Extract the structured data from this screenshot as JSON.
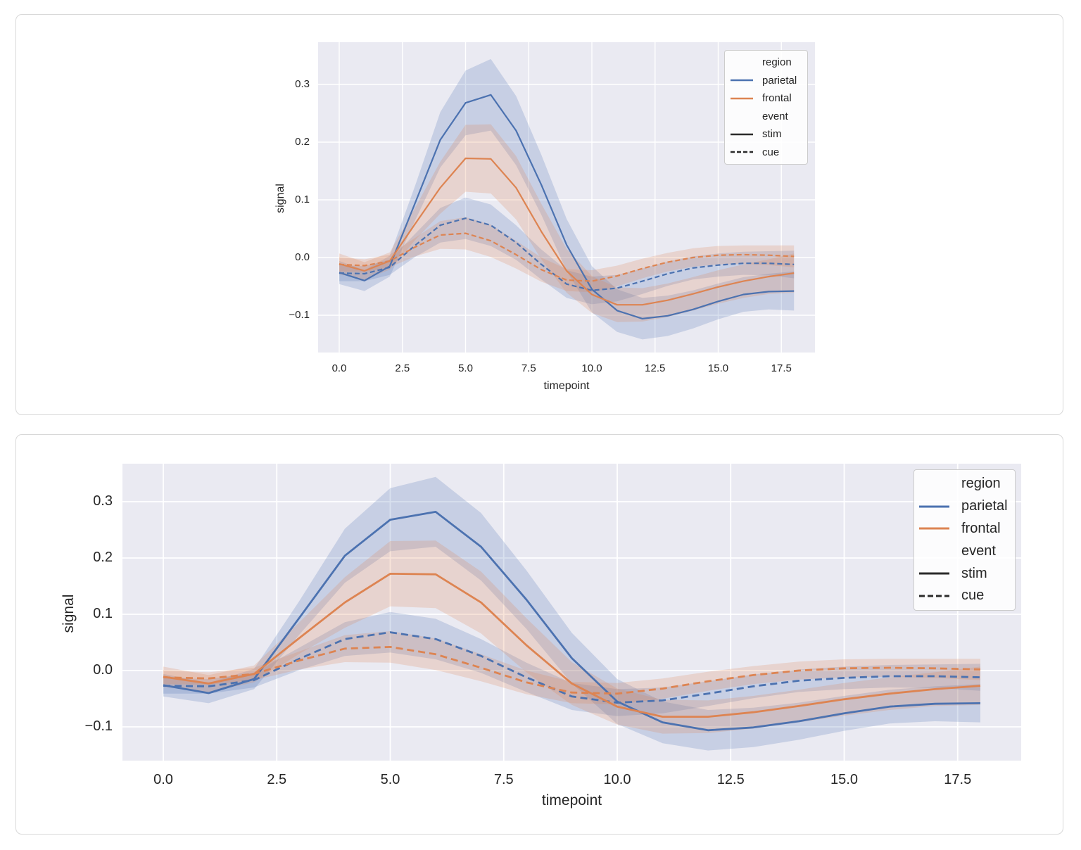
{
  "page": {
    "background": "#ffffff"
  },
  "colors": {
    "parietal": "#4c72b0",
    "frontal": "#dd8452",
    "legend_line": "#2b2b2b",
    "plot_bg": "#eaeaf2",
    "grid": "#ffffff",
    "tick_text": "#262626",
    "card_border": "#d8d8d8"
  },
  "chart_data": [
    {
      "type": "line",
      "title": "",
      "xlabel": "timepoint",
      "ylabel": "signal",
      "grid": true,
      "xlim": [
        -0.84,
        18.83
      ],
      "ylim": [
        -0.165,
        0.373
      ],
      "x": [
        0,
        1,
        2,
        3,
        4,
        5,
        6,
        7,
        8,
        9,
        10,
        11,
        12,
        13,
        14,
        15,
        16,
        17,
        18
      ],
      "xticks": [
        {
          "v": 0,
          "label": "0.0"
        },
        {
          "v": 2.5,
          "label": "2.5"
        },
        {
          "v": 5,
          "label": "5.0"
        },
        {
          "v": 7.5,
          "label": "7.5"
        },
        {
          "v": 10,
          "label": "10.0"
        },
        {
          "v": 12.5,
          "label": "12.5"
        },
        {
          "v": 15,
          "label": "15.0"
        },
        {
          "v": 17.5,
          "label": "17.5"
        }
      ],
      "yticks": [
        {
          "v": 0.3,
          "label": "0.3"
        },
        {
          "v": 0.2,
          "label": "0.2"
        },
        {
          "v": 0.1,
          "label": "0.1"
        },
        {
          "v": 0,
          "label": "0.0"
        },
        {
          "v": -0.1,
          "label": "−0.1"
        }
      ],
      "legend": {
        "position": "upper right",
        "entries": [
          {
            "kind": "header",
            "label": "region"
          },
          {
            "kind": "line",
            "label": "parietal",
            "color": "parietal",
            "dash": false
          },
          {
            "kind": "line",
            "label": "frontal",
            "color": "frontal",
            "dash": false
          },
          {
            "kind": "header",
            "label": "event"
          },
          {
            "kind": "line",
            "label": "stim",
            "color": "legend_line",
            "dash": false
          },
          {
            "kind": "line",
            "label": "cue",
            "color": "legend_line",
            "dash": true
          }
        ]
      },
      "series": [
        {
          "name": "parietal-stim",
          "region": "parietal",
          "event": "stim",
          "color": "parietal",
          "dash": false,
          "values": [
            -0.026,
            -0.04,
            -0.015,
            0.094,
            0.204,
            0.268,
            0.282,
            0.22,
            0.126,
            0.022,
            -0.055,
            -0.092,
            -0.106,
            -0.101,
            -0.09,
            -0.076,
            -0.064,
            -0.059,
            -0.058
          ],
          "ci_halfwidth": [
            0.02,
            0.018,
            0.018,
            0.03,
            0.048,
            0.056,
            0.062,
            0.06,
            0.052,
            0.045,
            0.04,
            0.037,
            0.036,
            0.035,
            0.033,
            0.031,
            0.03,
            0.031,
            0.034
          ]
        },
        {
          "name": "parietal-cue",
          "region": "parietal",
          "event": "cue",
          "color": "parietal",
          "dash": true,
          "values": [
            -0.027,
            -0.028,
            -0.017,
            0.021,
            0.056,
            0.068,
            0.056,
            0.026,
            -0.012,
            -0.046,
            -0.057,
            -0.053,
            -0.041,
            -0.028,
            -0.018,
            -0.013,
            -0.01,
            -0.01,
            -0.012
          ],
          "ci_halfwidth": [
            0.014,
            0.013,
            0.013,
            0.02,
            0.03,
            0.036,
            0.036,
            0.03,
            0.026,
            0.024,
            0.024,
            0.023,
            0.022,
            0.021,
            0.02,
            0.02,
            0.02,
            0.021,
            0.024
          ]
        },
        {
          "name": "frontal-stim",
          "region": "frontal",
          "event": "stim",
          "color": "frontal",
          "dash": false,
          "values": [
            -0.011,
            -0.023,
            -0.006,
            0.058,
            0.121,
            0.172,
            0.171,
            0.121,
            0.045,
            -0.023,
            -0.064,
            -0.082,
            -0.082,
            -0.074,
            -0.063,
            -0.051,
            -0.041,
            -0.033,
            -0.027
          ],
          "ci_halfwidth": [
            0.018,
            0.015,
            0.015,
            0.028,
            0.045,
            0.058,
            0.06,
            0.055,
            0.048,
            0.038,
            0.032,
            0.03,
            0.029,
            0.029,
            0.029,
            0.029,
            0.029,
            0.03,
            0.034
          ]
        },
        {
          "name": "frontal-cue",
          "region": "frontal",
          "event": "cue",
          "color": "frontal",
          "dash": true,
          "values": [
            -0.012,
            -0.014,
            -0.006,
            0.018,
            0.039,
            0.042,
            0.029,
            0.005,
            -0.021,
            -0.039,
            -0.041,
            -0.032,
            -0.019,
            -0.008,
            0.0,
            0.004,
            0.005,
            0.004,
            0.002
          ],
          "ci_halfwidth": [
            0.012,
            0.011,
            0.011,
            0.016,
            0.024,
            0.028,
            0.028,
            0.024,
            0.021,
            0.019,
            0.019,
            0.018,
            0.017,
            0.016,
            0.016,
            0.016,
            0.016,
            0.017,
            0.019
          ]
        }
      ]
    },
    {
      "type": "line",
      "title": "",
      "xlabel": "timepoint",
      "ylabel": "signal",
      "grid": true,
      "xlim": [
        -0.9,
        18.9
      ],
      "ylim": [
        -0.16,
        0.3675
      ],
      "x": [
        0,
        1,
        2,
        3,
        4,
        5,
        6,
        7,
        8,
        9,
        10,
        11,
        12,
        13,
        14,
        15,
        16,
        17,
        18
      ],
      "xticks": [
        {
          "v": 0,
          "label": "0.0"
        },
        {
          "v": 2.5,
          "label": "2.5"
        },
        {
          "v": 5,
          "label": "5.0"
        },
        {
          "v": 7.5,
          "label": "7.5"
        },
        {
          "v": 10,
          "label": "10.0"
        },
        {
          "v": 12.5,
          "label": "12.5"
        },
        {
          "v": 15,
          "label": "15.0"
        },
        {
          "v": 17.5,
          "label": "17.5"
        }
      ],
      "yticks": [
        {
          "v": 0.3,
          "label": "0.3"
        },
        {
          "v": 0.2,
          "label": "0.2"
        },
        {
          "v": 0.1,
          "label": "0.1"
        },
        {
          "v": 0,
          "label": "0.0"
        },
        {
          "v": -0.1,
          "label": "−0.1"
        }
      ],
      "legend": {
        "position": "upper right",
        "entries": [
          {
            "kind": "header",
            "label": "region"
          },
          {
            "kind": "line",
            "label": "parietal",
            "color": "parietal",
            "dash": false
          },
          {
            "kind": "line",
            "label": "frontal",
            "color": "frontal",
            "dash": false
          },
          {
            "kind": "header",
            "label": "event"
          },
          {
            "kind": "line",
            "label": "stim",
            "color": "legend_line",
            "dash": false
          },
          {
            "kind": "line",
            "label": "cue",
            "color": "legend_line",
            "dash": true
          }
        ]
      },
      "series": [
        {
          "name": "parietal-stim",
          "region": "parietal",
          "event": "stim",
          "color": "parietal",
          "dash": false,
          "values": [
            -0.026,
            -0.04,
            -0.015,
            0.094,
            0.204,
            0.268,
            0.282,
            0.22,
            0.126,
            0.022,
            -0.055,
            -0.092,
            -0.106,
            -0.101,
            -0.09,
            -0.076,
            -0.064,
            -0.059,
            -0.058
          ],
          "ci_halfwidth": [
            0.02,
            0.018,
            0.018,
            0.03,
            0.048,
            0.056,
            0.062,
            0.06,
            0.052,
            0.045,
            0.04,
            0.037,
            0.036,
            0.035,
            0.033,
            0.031,
            0.03,
            0.031,
            0.034
          ]
        },
        {
          "name": "parietal-cue",
          "region": "parietal",
          "event": "cue",
          "color": "parietal",
          "dash": true,
          "values": [
            -0.027,
            -0.028,
            -0.017,
            0.021,
            0.056,
            0.068,
            0.056,
            0.026,
            -0.012,
            -0.046,
            -0.057,
            -0.053,
            -0.041,
            -0.028,
            -0.018,
            -0.013,
            -0.01,
            -0.01,
            -0.012
          ],
          "ci_halfwidth": [
            0.014,
            0.013,
            0.013,
            0.02,
            0.03,
            0.036,
            0.036,
            0.03,
            0.026,
            0.024,
            0.024,
            0.023,
            0.022,
            0.021,
            0.02,
            0.02,
            0.02,
            0.021,
            0.024
          ]
        },
        {
          "name": "frontal-stim",
          "region": "frontal",
          "event": "stim",
          "color": "frontal",
          "dash": false,
          "values": [
            -0.011,
            -0.023,
            -0.006,
            0.058,
            0.121,
            0.172,
            0.171,
            0.121,
            0.045,
            -0.023,
            -0.064,
            -0.082,
            -0.082,
            -0.074,
            -0.063,
            -0.051,
            -0.041,
            -0.033,
            -0.027
          ],
          "ci_halfwidth": [
            0.018,
            0.015,
            0.015,
            0.028,
            0.045,
            0.058,
            0.06,
            0.055,
            0.048,
            0.038,
            0.032,
            0.03,
            0.029,
            0.029,
            0.029,
            0.029,
            0.029,
            0.03,
            0.034
          ]
        },
        {
          "name": "frontal-cue",
          "region": "frontal",
          "event": "cue",
          "color": "frontal",
          "dash": true,
          "values": [
            -0.012,
            -0.014,
            -0.006,
            0.018,
            0.039,
            0.042,
            0.029,
            0.005,
            -0.021,
            -0.039,
            -0.041,
            -0.032,
            -0.019,
            -0.008,
            0.0,
            0.004,
            0.005,
            0.004,
            0.002
          ],
          "ci_halfwidth": [
            0.012,
            0.011,
            0.011,
            0.016,
            0.024,
            0.028,
            0.028,
            0.024,
            0.021,
            0.019,
            0.019,
            0.018,
            0.017,
            0.016,
            0.016,
            0.016,
            0.016,
            0.017,
            0.019
          ]
        }
      ]
    }
  ]
}
